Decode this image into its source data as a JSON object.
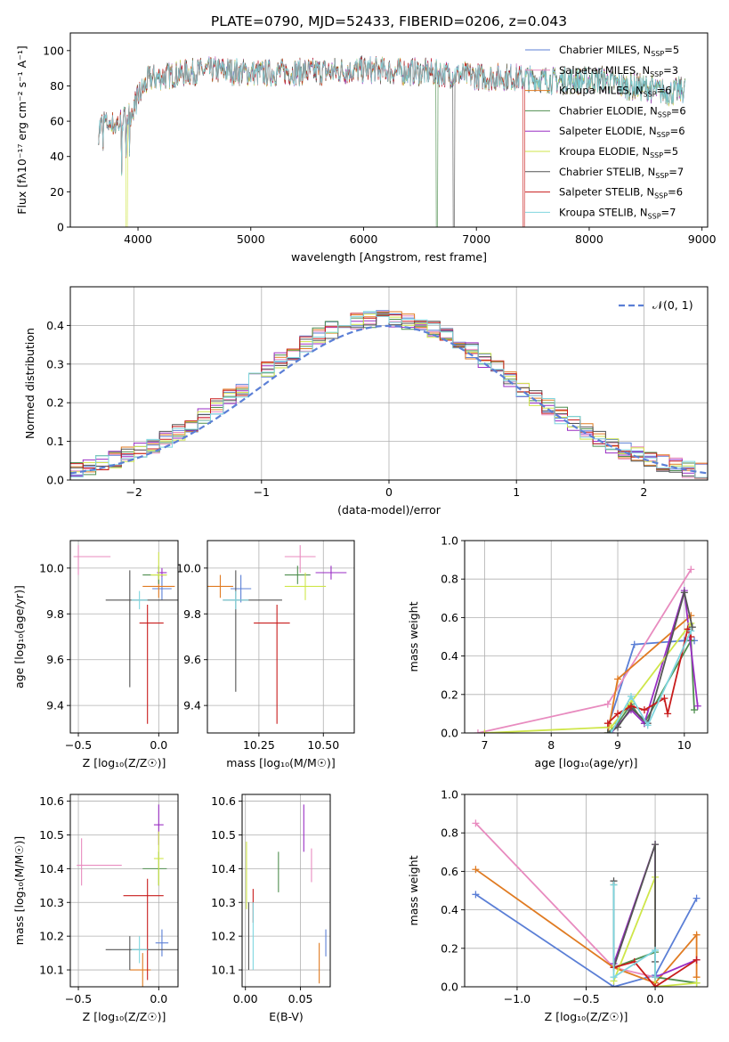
{
  "figure_title": "PLATE=0790, MJD=52433, FIBERID=0206, z=0.043",
  "colors": {
    "Chabrier MILES": "#5b7fd6",
    "Salpeter MILES": "#e88bbf",
    "Kroupa MILES": "#e07b22",
    "Chabrier ELODIE": "#4f8f4f",
    "Salpeter ELODIE": "#9a2ec4",
    "Kroupa ELODIE": "#cfe64a",
    "Chabrier STELIB": "#555555",
    "Salpeter STELIB": "#c81c1c",
    "Kroupa STELIB": "#7fd6df"
  },
  "chart_data": [
    {
      "id": "spectrum",
      "type": "line",
      "xlabel": "wavelength [Angstrom, rest frame]",
      "ylabel": "Flux [fλ10⁻¹⁷ erg cm⁻² s⁻¹ A⁻¹]",
      "xlim": [
        3400,
        9050
      ],
      "ylim": [
        0,
        110
      ],
      "xticks": [
        4000,
        5000,
        6000,
        7000,
        8000,
        9000
      ],
      "yticks": [
        0,
        20,
        40,
        60,
        80,
        100
      ],
      "legend_position": "top-right",
      "series": [
        {
          "name": "Chabrier MILES, N_SSP=5",
          "key": "Chabrier MILES"
        },
        {
          "name": "Salpeter MILES, N_SSP=3",
          "key": "Salpeter MILES"
        },
        {
          "name": "Kroupa MILES, N_SSP=6",
          "key": "Kroupa MILES"
        },
        {
          "name": "Chabrier ELODIE, N_SSP=6",
          "key": "Chabrier ELODIE"
        },
        {
          "name": "Salpeter ELODIE, N_SSP=6",
          "key": "Salpeter ELODIE"
        },
        {
          "name": "Kroupa ELODIE, N_SSP=5",
          "key": "Kroupa ELODIE"
        },
        {
          "name": "Chabrier STELIB, N_SSP=7",
          "key": "Chabrier STELIB"
        },
        {
          "name": "Salpeter STELIB, N_SSP=6",
          "key": "Salpeter STELIB"
        },
        {
          "name": "Kroupa STELIB, N_SSP=7",
          "key": "Kroupa STELIB"
        }
      ],
      "envelope": {
        "x": [
          3650,
          3700,
          3800,
          3900,
          3950,
          4000,
          4100,
          4200,
          4300,
          4500,
          4700,
          4900,
          5100,
          5300,
          5500,
          5700,
          5900,
          6100,
          6300,
          6500,
          6700,
          6900,
          7100,
          7300,
          7500,
          7700,
          7900,
          8100,
          8300,
          8500,
          8700,
          8850
        ],
        "y": [
          55,
          60,
          58,
          62,
          66,
          74,
          84,
          85,
          86,
          88,
          89,
          88,
          87,
          88,
          88,
          88,
          89,
          89,
          88,
          88,
          87,
          86,
          85,
          85,
          84,
          83,
          83,
          84,
          80,
          79,
          76,
          78
        ]
      }
    },
    {
      "id": "residuals",
      "type": "histogram",
      "xlabel": "(data-model)/error",
      "ylabel": "Normed distribution",
      "xlim": [
        -2.5,
        2.5
      ],
      "ylim": [
        0,
        0.5
      ],
      "xticks": [
        -2,
        -1,
        0,
        1,
        2
      ],
      "yticks": [
        0.0,
        0.1,
        0.2,
        0.3,
        0.4
      ],
      "legend": "𝒩(0, 1)",
      "legend_position": "top-right",
      "bin_width": 0.1,
      "grid": true
    },
    {
      "id": "age-vs-z",
      "type": "errorbar",
      "xlabel": "Z [log₁₀(Z/Z☉)]",
      "ylabel": "age  [log₁₀(age/yr)]",
      "xlim": [
        -0.55,
        0.12
      ],
      "ylim": [
        9.28,
        10.12
      ],
      "xticks": [
        -0.5,
        0.0
      ],
      "yticks": [
        9.4,
        9.6,
        9.8,
        10.0
      ],
      "grid": true,
      "points": [
        {
          "key": "Chabrier MILES",
          "x": 0.02,
          "y": 9.91,
          "xerr": [
            0.06,
            0.06
          ],
          "yerr": [
            0.05,
            0.05
          ]
        },
        {
          "key": "Salpeter MILES",
          "x": -0.5,
          "y": 10.05,
          "xerr": [
            0.03,
            0.2
          ],
          "yerr": [
            0.08,
            0.05
          ]
        },
        {
          "key": "Kroupa MILES",
          "x": 0.0,
          "y": 9.92,
          "xerr": [
            0.1,
            0.1
          ],
          "yerr": [
            0.05,
            0.05
          ]
        },
        {
          "key": "Chabrier ELODIE",
          "x": 0.0,
          "y": 9.97,
          "xerr": [
            0.1,
            0.05
          ],
          "yerr": [
            0.04,
            0.04
          ]
        },
        {
          "key": "Salpeter ELODIE",
          "x": 0.02,
          "y": 9.98,
          "xerr": [
            0.03,
            0.03
          ],
          "yerr": [
            0.02,
            0.02
          ]
        },
        {
          "key": "Kroupa ELODIE",
          "x": 0.0,
          "y": 9.97,
          "xerr": [
            0.05,
            0.05
          ],
          "yerr": [
            0.02,
            0.1
          ]
        },
        {
          "key": "Chabrier STELIB",
          "x": -0.18,
          "y": 9.86,
          "xerr": [
            0.15,
            0.3
          ],
          "yerr": [
            0.38,
            0.13
          ]
        },
        {
          "key": "Salpeter STELIB",
          "x": -0.07,
          "y": 9.76,
          "xerr": [
            0.05,
            0.1
          ],
          "yerr": [
            0.44,
            0.08
          ]
        },
        {
          "key": "Kroupa STELIB",
          "x": -0.12,
          "y": 9.86,
          "xerr": [
            0.05,
            0.05
          ],
          "yerr": [
            0.04,
            0.04
          ]
        }
      ]
    },
    {
      "id": "age-vs-mass",
      "type": "errorbar",
      "xlabel": "mass [log₁₀(M/M☉)]",
      "ylabel": "",
      "xlim": [
        10.05,
        10.62
      ],
      "ylim": [
        9.28,
        10.12
      ],
      "xticks": [
        10.25,
        10.5
      ],
      "yticks": [
        9.4,
        9.6,
        9.8,
        10.0
      ],
      "grid": true,
      "points": [
        {
          "key": "Chabrier MILES",
          "x": 10.18,
          "y": 9.91,
          "xerr": [
            0.04,
            0.04
          ],
          "yerr": [
            0.06,
            0.06
          ]
        },
        {
          "key": "Salpeter MILES",
          "x": 10.41,
          "y": 10.05,
          "xerr": [
            0.06,
            0.06
          ],
          "yerr": [
            0.07,
            0.05
          ]
        },
        {
          "key": "Kroupa MILES",
          "x": 10.1,
          "y": 9.92,
          "xerr": [
            0.05,
            0.05
          ],
          "yerr": [
            0.05,
            0.05
          ]
        },
        {
          "key": "Chabrier ELODIE",
          "x": 10.4,
          "y": 9.97,
          "xerr": [
            0.05,
            0.05
          ],
          "yerr": [
            0.04,
            0.04
          ]
        },
        {
          "key": "Salpeter ELODIE",
          "x": 10.53,
          "y": 9.98,
          "xerr": [
            0.06,
            0.06
          ],
          "yerr": [
            0.03,
            0.03
          ]
        },
        {
          "key": "Kroupa ELODIE",
          "x": 10.43,
          "y": 9.92,
          "xerr": [
            0.08,
            0.08
          ],
          "yerr": [
            0.06,
            0.06
          ]
        },
        {
          "key": "Chabrier STELIB",
          "x": 10.16,
          "y": 9.86,
          "xerr": [
            0.05,
            0.18
          ],
          "yerr": [
            0.4,
            0.13
          ]
        },
        {
          "key": "Salpeter STELIB",
          "x": 10.32,
          "y": 9.76,
          "xerr": [
            0.09,
            0.05
          ],
          "yerr": [
            0.44,
            0.08
          ]
        },
        {
          "key": "Kroupa STELIB",
          "x": 10.16,
          "y": 9.86,
          "xerr": [
            0.05,
            0.05
          ],
          "yerr": [
            0.04,
            0.04
          ]
        }
      ]
    },
    {
      "id": "mass-weight-vs-age",
      "type": "line",
      "xlabel": "age  [log₁₀(age/yr)]",
      "ylabel": "mass weight",
      "xlim": [
        6.7,
        10.35
      ],
      "ylim": [
        0,
        1.0
      ],
      "xticks": [
        7,
        8,
        9,
        10
      ],
      "yticks": [
        0.0,
        0.2,
        0.4,
        0.6,
        0.8,
        1.0
      ],
      "grid": true,
      "series": [
        {
          "key": "Chabrier MILES",
          "x": [
            8.85,
            9.25,
            10.0,
            10.15
          ],
          "y": [
            0.03,
            0.46,
            0.48,
            0.48
          ]
        },
        {
          "key": "Salpeter MILES",
          "x": [
            6.9,
            8.85,
            10.1
          ],
          "y": [
            0.0,
            0.15,
            0.85
          ]
        },
        {
          "key": "Kroupa MILES",
          "x": [
            8.85,
            9.0,
            10.1
          ],
          "y": [
            0.0,
            0.28,
            0.61
          ]
        },
        {
          "key": "Chabrier ELODIE",
          "x": [
            8.85,
            9.0,
            9.2,
            9.4,
            10.1,
            10.15
          ],
          "y": [
            0.0,
            0.05,
            0.15,
            0.05,
            0.48,
            0.12
          ]
        },
        {
          "key": "Salpeter ELODIE",
          "x": [
            8.9,
            9.2,
            9.4,
            10.0,
            10.2
          ],
          "y": [
            0.0,
            0.12,
            0.05,
            0.74,
            0.14
          ]
        },
        {
          "key": "Kroupa ELODIE",
          "x": [
            7.0,
            8.9,
            9.2,
            10.1
          ],
          "y": [
            0.0,
            0.03,
            0.16,
            0.57
          ]
        },
        {
          "key": "Chabrier STELIB",
          "x": [
            8.85,
            9.0,
            9.2,
            9.45,
            10.0,
            10.12
          ],
          "y": [
            0.0,
            0.03,
            0.13,
            0.05,
            0.73,
            0.55
          ]
        },
        {
          "key": "Salpeter STELIB",
          "x": [
            8.85,
            9.0,
            9.2,
            9.4,
            9.7,
            9.75,
            10.05,
            10.1
          ],
          "y": [
            0.05,
            0.1,
            0.14,
            0.12,
            0.18,
            0.1,
            0.54,
            0.5
          ]
        },
        {
          "key": "Kroupa STELIB",
          "x": [
            8.9,
            9.2,
            9.45,
            10.1
          ],
          "y": [
            0.0,
            0.19,
            0.04,
            0.53
          ]
        }
      ]
    },
    {
      "id": "mass-vs-z",
      "type": "errorbar",
      "xlabel": "Z [log₁₀(Z/Z☉)]",
      "ylabel": "mass [log₁₀(M/M☉)]",
      "xlim": [
        -0.55,
        0.12
      ],
      "ylim": [
        10.05,
        10.62
      ],
      "xticks": [
        -0.5,
        0.0
      ],
      "yticks": [
        10.1,
        10.2,
        10.3,
        10.4,
        10.5,
        10.6
      ],
      "grid": true,
      "points": [
        {
          "key": "Chabrier MILES",
          "x": 0.02,
          "y": 10.18,
          "xerr": [
            0.04,
            0.04
          ],
          "yerr": [
            0.04,
            0.04
          ]
        },
        {
          "key": "Salpeter MILES",
          "x": -0.48,
          "y": 10.41,
          "xerr": [
            0.03,
            0.25
          ],
          "yerr": [
            0.06,
            0.08
          ]
        },
        {
          "key": "Kroupa MILES",
          "x": -0.1,
          "y": 10.1,
          "xerr": [
            0.08,
            0.05
          ],
          "yerr": [
            0.05,
            0.05
          ]
        },
        {
          "key": "Chabrier ELODIE",
          "x": 0.0,
          "y": 10.4,
          "xerr": [
            0.1,
            0.05
          ],
          "yerr": [
            0.05,
            0.05
          ]
        },
        {
          "key": "Salpeter ELODIE",
          "x": 0.0,
          "y": 10.53,
          "xerr": [
            0.03,
            0.03
          ],
          "yerr": [
            0.06,
            0.06
          ]
        },
        {
          "key": "Kroupa ELODIE",
          "x": 0.0,
          "y": 10.43,
          "xerr": [
            0.03,
            0.03
          ],
          "yerr": [
            0.08,
            0.08
          ]
        },
        {
          "key": "Chabrier STELIB",
          "x": -0.18,
          "y": 10.16,
          "xerr": [
            0.15,
            0.3
          ],
          "yerr": [
            0.06,
            0.04
          ]
        },
        {
          "key": "Salpeter STELIB",
          "x": -0.07,
          "y": 10.32,
          "xerr": [
            0.15,
            0.1
          ],
          "yerr": [
            0.25,
            0.05
          ]
        },
        {
          "key": "Kroupa STELIB",
          "x": -0.12,
          "y": 10.16,
          "xerr": [
            0.05,
            0.05
          ],
          "yerr": [
            0.04,
            0.04
          ]
        }
      ]
    },
    {
      "id": "mass-vs-ebv",
      "type": "errorbar",
      "xlabel": "E(B-V)",
      "ylabel": "",
      "xlim": [
        -0.003,
        0.077
      ],
      "ylim": [
        10.05,
        10.62
      ],
      "xticks": [
        0.0,
        0.05
      ],
      "xticklabels": [
        "0.00",
        "0.05"
      ],
      "yticks": [
        10.1,
        10.2,
        10.3,
        10.4,
        10.5,
        10.6
      ],
      "grid": true,
      "points": [
        {
          "key": "Chabrier MILES",
          "x": 0.073,
          "y": 10.18,
          "yerr": [
            0.04,
            0.04
          ]
        },
        {
          "key": "Salpeter MILES",
          "x": 0.06,
          "y": 10.41,
          "yerr": [
            0.05,
            0.05
          ]
        },
        {
          "key": "Kroupa MILES",
          "x": 0.067,
          "y": 10.12,
          "yerr": [
            0.06,
            0.06
          ]
        },
        {
          "key": "Chabrier ELODIE",
          "x": 0.03,
          "y": 10.39,
          "yerr": [
            0.06,
            0.06
          ]
        },
        {
          "key": "Salpeter ELODIE",
          "x": 0.053,
          "y": 10.52,
          "yerr": [
            0.07,
            0.07
          ]
        },
        {
          "key": "Kroupa ELODIE",
          "x": 0.001,
          "y": 10.38,
          "yerr": [
            0.1,
            0.1
          ]
        },
        {
          "key": "Chabrier STELIB",
          "x": 0.003,
          "y": 10.2,
          "yerr": [
            0.1,
            0.1
          ]
        },
        {
          "key": "Salpeter STELIB",
          "x": 0.007,
          "y": 10.29,
          "yerr": [
            0.05,
            0.05
          ]
        },
        {
          "key": "Kroupa STELIB",
          "x": 0.007,
          "y": 10.2,
          "yerr": [
            0.1,
            0.1
          ]
        }
      ]
    },
    {
      "id": "mass-weight-vs-z",
      "type": "line",
      "xlabel": "Z [log₁₀(Z/Z☉)]",
      "ylabel": "mass weight",
      "xlim": [
        -1.38,
        0.38
      ],
      "ylim": [
        0,
        1.0
      ],
      "xticks": [
        -1.0,
        -0.5,
        0.0
      ],
      "xticklabels": [
        "−1.0",
        "−0.5",
        "0.0"
      ],
      "yticks": [
        0.0,
        0.2,
        0.4,
        0.6,
        0.8,
        1.0
      ],
      "grid": true,
      "series": [
        {
          "key": "Chabrier MILES",
          "x": [
            -1.3,
            -0.3,
            0.0,
            0.3
          ],
          "y": [
            0.48,
            0.0,
            0.06,
            0.46
          ]
        },
        {
          "key": "Salpeter MILES",
          "x": [
            -1.3,
            -0.3,
            0.0
          ],
          "y": [
            0.85,
            0.1,
            0.05
          ]
        },
        {
          "key": "Kroupa MILES",
          "x": [
            -1.3,
            -0.3,
            0.0,
            0.3,
            0.3
          ],
          "y": [
            0.61,
            0.1,
            0.02,
            0.27,
            0.05
          ]
        },
        {
          "key": "Chabrier ELODIE",
          "x": [
            -0.3,
            -0.3,
            0.0,
            0.0,
            0.3
          ],
          "y": [
            0.53,
            0.1,
            0.18,
            0.05,
            0.02
          ]
        },
        {
          "key": "Salpeter ELODIE",
          "x": [
            -0.3,
            0.0,
            0.0,
            0.3
          ],
          "y": [
            0.12,
            0.74,
            0.05,
            0.14
          ]
        },
        {
          "key": "Kroupa ELODIE",
          "x": [
            -0.3,
            0.0,
            0.0,
            0.3
          ],
          "y": [
            0.03,
            0.57,
            0.0,
            0.02
          ]
        },
        {
          "key": "Chabrier STELIB",
          "x": [
            -0.3,
            -0.3,
            0.0,
            0.0
          ],
          "y": [
            0.55,
            0.1,
            0.74,
            0.13
          ]
        },
        {
          "key": "Salpeter STELIB",
          "x": [
            -0.3,
            -0.15,
            0.0,
            0.3
          ],
          "y": [
            0.1,
            0.13,
            0.0,
            0.14
          ]
        },
        {
          "key": "Kroupa STELIB",
          "x": [
            -0.3,
            -0.3,
            0.0,
            0.0
          ],
          "y": [
            0.53,
            0.05,
            0.19,
            0.05
          ]
        }
      ]
    }
  ]
}
